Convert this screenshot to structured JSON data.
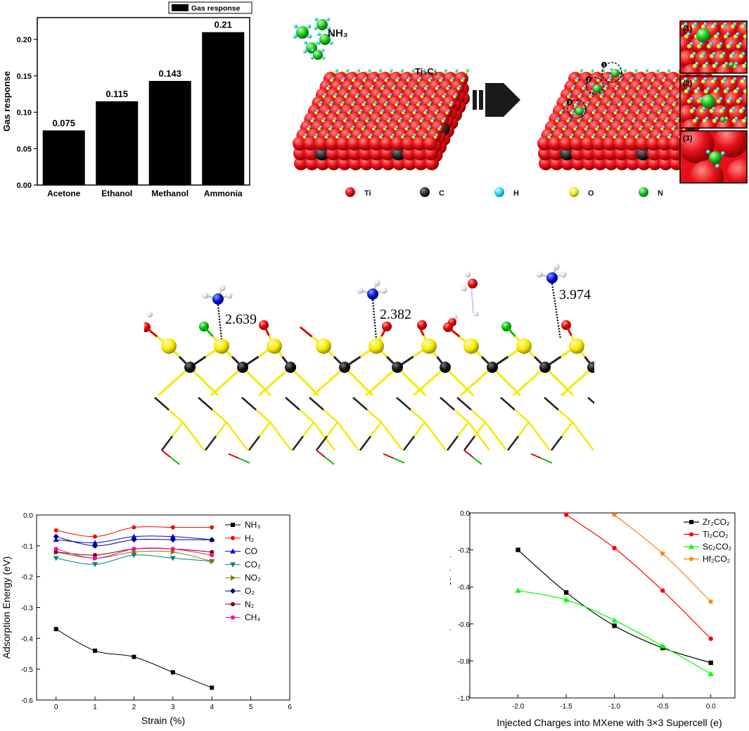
{
  "bar_chart": {
    "type": "bar",
    "categories": [
      "Acetone",
      "Ethanol",
      "Methanol",
      "Ammonia"
    ],
    "values": [
      0.075,
      0.115,
      0.143,
      0.21
    ],
    "value_labels": [
      "0.075",
      "0.115",
      "0.143",
      "0.21"
    ],
    "ylabel": "Gas response",
    "legend": "Gas response",
    "ylim": [
      0,
      0.23
    ],
    "yticks": [
      "0.00",
      "0.05",
      "0.10",
      "0.15",
      "0.20"
    ],
    "ytick_values": [
      0,
      0.05,
      0.1,
      0.15,
      0.2
    ],
    "bar_color": "#000000"
  },
  "schematic": {
    "molecule_label": "NH₃",
    "surface_label": "Ti₃C₂",
    "site_labels": [
      "1",
      "2",
      "3"
    ],
    "inset_labels": [
      "(1)",
      "(2)",
      "(3)"
    ],
    "legend": [
      {
        "label": "Ti",
        "color": "#e8101a"
      },
      {
        "label": "C",
        "color": "#2b2b2b"
      },
      {
        "label": "H",
        "color": "#26d4f0"
      },
      {
        "label": "O",
        "color": "#f2ea18"
      },
      {
        "label": "N",
        "color": "#1fc71f"
      }
    ]
  },
  "structures": {
    "distances": [
      "2.639",
      "2.382",
      "3.974"
    ]
  },
  "chart_data": [
    {
      "type": "line",
      "xlabel": "Strain (%)",
      "ylabel": "Adsorption Energy (eV)",
      "xlim": [
        -0.5,
        6
      ],
      "ylim": [
        -0.6,
        0.0
      ],
      "xticks": [
        0,
        1,
        2,
        3,
        4,
        5,
        6
      ],
      "yticks": [
        0.0,
        -0.1,
        -0.2,
        -0.3,
        -0.4,
        -0.5,
        -0.6
      ],
      "ytick_labels": [
        "0.0",
        "-0.1",
        "-0.2",
        "-0.3",
        "-0.4",
        "-0.5",
        "-0.6"
      ],
      "x": [
        0,
        1,
        2,
        3,
        4
      ],
      "series": [
        {
          "name": "NH₃",
          "color": "#000000",
          "marker": "square",
          "values": [
            -0.37,
            -0.44,
            -0.46,
            -0.51,
            -0.56
          ]
        },
        {
          "name": "H₂",
          "color": "#ff0000",
          "marker": "circle",
          "values": [
            -0.05,
            -0.07,
            -0.04,
            -0.04,
            -0.04
          ]
        },
        {
          "name": "CO",
          "color": "#0000ff",
          "marker": "triangle",
          "values": [
            -0.08,
            -0.09,
            -0.07,
            -0.07,
            -0.08
          ]
        },
        {
          "name": "CO₂",
          "color": "#008080",
          "marker": "triangle-down",
          "values": [
            -0.14,
            -0.16,
            -0.13,
            -0.14,
            -0.15
          ]
        },
        {
          "name": "NO₂",
          "color": "#808000",
          "marker": "triangle-right",
          "values": [
            -0.12,
            -0.14,
            -0.12,
            -0.12,
            -0.15
          ]
        },
        {
          "name": "O₂",
          "color": "#000080",
          "marker": "diamond",
          "values": [
            -0.07,
            -0.1,
            -0.08,
            -0.08,
            -0.08
          ]
        },
        {
          "name": "N₂",
          "color": "#800000",
          "marker": "circle",
          "values": [
            -0.12,
            -0.13,
            -0.11,
            -0.11,
            -0.12
          ]
        },
        {
          "name": "CH₄",
          "color": "#ff00aa",
          "marker": "circle",
          "values": [
            -0.11,
            -0.14,
            -0.11,
            -0.11,
            -0.13
          ]
        }
      ]
    },
    {
      "type": "line",
      "xlabel": "Injected Charges into MXene with 3×3 Supercell (e)",
      "ylabel": "Adsorption Energy (eV)",
      "xlim": [
        -2.5,
        0.25
      ],
      "ylim": [
        -1.0,
        0.0
      ],
      "xticks": [
        -2.0,
        -1.5,
        -1.0,
        -0.5,
        0.0
      ],
      "xtick_labels": [
        "-2.0",
        "-1.5",
        "-1.0",
        "-0.5",
        "0.0"
      ],
      "yticks": [
        0.0,
        -0.2,
        -0.4,
        -0.6,
        -0.8,
        -1.0
      ],
      "ytick_labels": [
        "0.0",
        "-0.2",
        "-0.4",
        "-0.6",
        "-0.8",
        "-1.0"
      ],
      "series": [
        {
          "name": "Zr₂CO₂",
          "color": "#000000",
          "marker": "square",
          "x": [
            -2.0,
            -1.5,
            -1.0,
            -0.5,
            0.0
          ],
          "values": [
            -0.2,
            -0.43,
            -0.61,
            -0.73,
            -0.81
          ]
        },
        {
          "name": "Ti₂CO₂",
          "color": "#ff0000",
          "marker": "circle",
          "x": [
            -1.5,
            -1.0,
            -0.5,
            0.0
          ],
          "values": [
            -0.01,
            -0.19,
            -0.42,
            -0.68
          ]
        },
        {
          "name": "Sc₂CO₂",
          "color": "#00ff00",
          "marker": "triangle",
          "x": [
            -2.0,
            -1.5,
            -1.0,
            -0.5,
            0.0
          ],
          "values": [
            -0.42,
            -0.47,
            -0.58,
            -0.72,
            -0.87
          ]
        },
        {
          "name": "Hf₂CO₂",
          "color": "#ff8000",
          "marker": "star",
          "x": [
            -1.0,
            -0.5,
            0.0
          ],
          "values": [
            -0.01,
            -0.22,
            -0.48
          ]
        }
      ]
    }
  ]
}
